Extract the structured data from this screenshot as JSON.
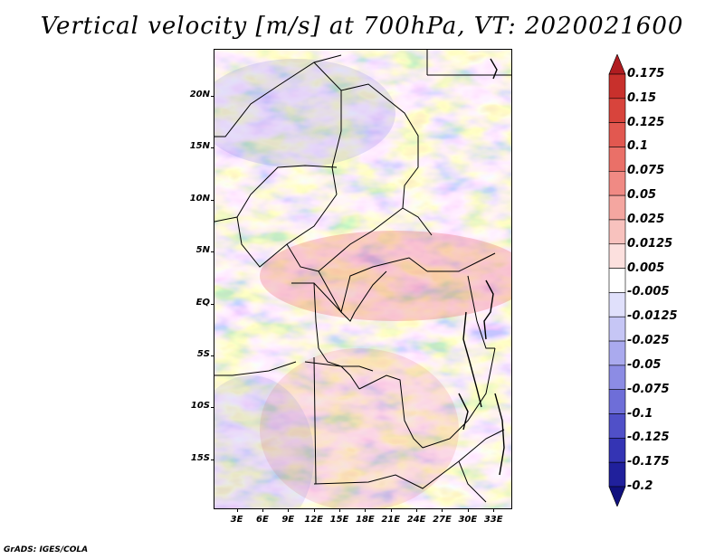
{
  "title": "Vertical velocity [m/s] at 700hPa, VT: 2020021600",
  "credit": "GrADS: IGES/COLA",
  "map": {
    "lat_labels": [
      "20N",
      "15N",
      "10N",
      "5N",
      "EQ",
      "5S",
      "10S",
      "15S"
    ],
    "lat_values": [
      20,
      15,
      10,
      5,
      0,
      -5,
      -10,
      -15
    ],
    "lon_labels": [
      "3E",
      "6E",
      "9E",
      "12E",
      "15E",
      "18E",
      "21E",
      "24E",
      "27E",
      "30E",
      "33E"
    ],
    "lon_values": [
      3,
      6,
      9,
      12,
      15,
      18,
      21,
      24,
      27,
      30,
      33
    ],
    "lat_range": [
      -19.8,
      24.5
    ],
    "lon_range": [
      0.3,
      35.2
    ]
  },
  "colorbar": {
    "labels": [
      "0.175",
      "0.15",
      "0.125",
      "0.1",
      "0.075",
      "0.05",
      "0.025",
      "0.0125",
      "0.005",
      "-0.005",
      "-0.0125",
      "-0.025",
      "-0.05",
      "-0.075",
      "-0.1",
      "-0.125",
      "-0.175",
      "-0.2"
    ],
    "colors": [
      "#b01c20",
      "#c8302c",
      "#d8443c",
      "#e25850",
      "#ea7068",
      "#f08a84",
      "#f4a6a0",
      "#f8c2be",
      "#fce0de",
      "#ffffff",
      "#e0e0fb",
      "#c6c6f5",
      "#aaaaee",
      "#8c8ce4",
      "#6e6ed8",
      "#5050c8",
      "#3434b4",
      "#20209c",
      "#10107e"
    ]
  }
}
